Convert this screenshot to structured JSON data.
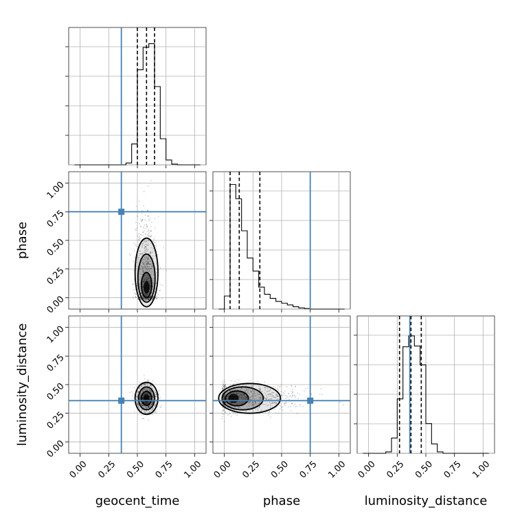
{
  "chart_data": {
    "type": "corner",
    "parameters": [
      "geocent_time",
      "phase",
      "luminosity_distance"
    ],
    "truths": {
      "geocent_time": 0.36,
      "phase": 0.75,
      "luminosity_distance": 0.36
    },
    "tick_values": [
      0.0,
      0.25,
      0.5,
      0.75,
      1.0
    ],
    "tick_labels": [
      "0.00",
      "0.25",
      "0.50",
      "0.75",
      "1.00"
    ],
    "axis_range": [
      -0.1,
      1.1
    ],
    "grid": true,
    "marginals": [
      {
        "parameter": "geocent_time",
        "quantiles": [
          0.5,
          0.58,
          0.65
        ],
        "bin_edges": [
          -0.05,
          0.0,
          0.05,
          0.1,
          0.15,
          0.2,
          0.25,
          0.3,
          0.35,
          0.4,
          0.45,
          0.5,
          0.55,
          0.6,
          0.65,
          0.7,
          0.75,
          0.8,
          0.85,
          0.9,
          0.95,
          1.0,
          1.05
        ],
        "counts": [
          0,
          0,
          0,
          0,
          0,
          0,
          0,
          0,
          0,
          0.5,
          5.6,
          25.5,
          31.5,
          32.5,
          21.0,
          7.0,
          1.3,
          0.2,
          0,
          0,
          0,
          0
        ],
        "ymax": 35
      },
      {
        "parameter": "phase",
        "quantiles": [
          0.05,
          0.13,
          0.31
        ],
        "bin_edges": [
          -0.05,
          0.0,
          0.05,
          0.1,
          0.15,
          0.2,
          0.25,
          0.3,
          0.35,
          0.4,
          0.45,
          0.5,
          0.55,
          0.6,
          0.65,
          0.7,
          0.75,
          0.8,
          0.85,
          0.9,
          0.95,
          1.0,
          1.05
        ],
        "counts": [
          0,
          2.2,
          21.0,
          18.6,
          13.2,
          8.6,
          6.4,
          3.7,
          2.5,
          1.8,
          1.3,
          1.0,
          0.7,
          0.4,
          0.2,
          0.1,
          0,
          0,
          0,
          0,
          0,
          0
        ],
        "ymax": 22
      },
      {
        "parameter": "luminosity_distance",
        "quantiles": [
          0.27,
          0.37,
          0.46
        ],
        "bin_edges": [
          -0.05,
          0.0,
          0.05,
          0.1,
          0.15,
          0.2,
          0.25,
          0.3,
          0.35,
          0.4,
          0.45,
          0.5,
          0.55,
          0.6,
          0.65,
          0.7,
          0.75,
          0.8,
          0.85,
          0.9,
          0.95,
          1.0,
          1.05
        ],
        "counts": [
          0,
          0,
          0,
          0,
          0.2,
          2.1,
          7.5,
          14.7,
          16.2,
          14.8,
          12.2,
          4.1,
          1.3,
          0.2,
          0,
          0,
          0,
          0,
          0,
          0,
          0,
          0
        ],
        "ymax": 18
      }
    ],
    "joints": [
      {
        "x": "geocent_time",
        "y": "phase",
        "center": [
          0.58,
          0.13
        ],
        "spread": [
          0.045,
          0.14
        ],
        "skew_y": 0.12,
        "contours": [
          {
            "a": 0.025,
            "b": 0.055,
            "y_offset": -0.04
          },
          {
            "a": 0.045,
            "b": 0.11,
            "y_offset": -0.02
          },
          {
            "a": 0.075,
            "b": 0.21,
            "y_offset": 0.04
          },
          {
            "a": 0.1,
            "b": 0.3,
            "y_offset": 0.09
          }
        ]
      },
      {
        "x": "geocent_time",
        "y": "luminosity_distance",
        "center": [
          0.58,
          0.38
        ],
        "spread": [
          0.045,
          0.06
        ],
        "skew_y": 0,
        "contours": [
          {
            "a": 0.025,
            "b": 0.035,
            "y_offset": 0
          },
          {
            "a": 0.045,
            "b": 0.06,
            "y_offset": 0
          },
          {
            "a": 0.07,
            "b": 0.1,
            "y_offset": 0
          },
          {
            "a": 0.1,
            "b": 0.14,
            "y_offset": 0
          }
        ]
      },
      {
        "x": "phase",
        "y": "luminosity_distance",
        "center": [
          0.1,
          0.38
        ],
        "spread": [
          0.14,
          0.06
        ],
        "skew_x": 0.12,
        "contours": [
          {
            "a": 0.045,
            "b": 0.04,
            "x_offset": -0.02
          },
          {
            "a": 0.1,
            "b": 0.065,
            "x_offset": 0.01
          },
          {
            "a": 0.18,
            "b": 0.1,
            "x_offset": 0.06
          },
          {
            "a": 0.27,
            "b": 0.13,
            "x_offset": 0.12
          }
        ]
      }
    ]
  }
}
